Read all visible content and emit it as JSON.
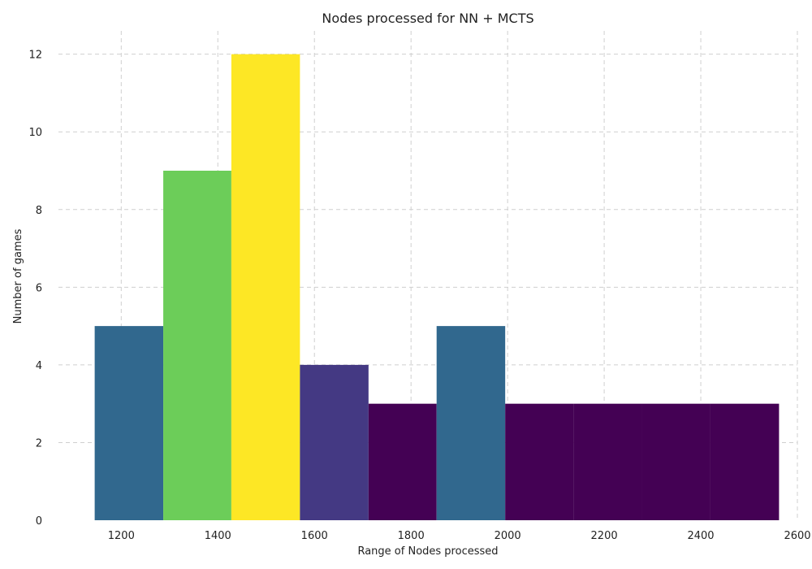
{
  "chart_data": {
    "type": "bar",
    "title": "Nodes processed for NN + MCTS",
    "xlabel": "Range of Nodes processed",
    "ylabel": "Number of games",
    "xlim": [
      1070,
      2600
    ],
    "ylim": [
      0,
      12.6
    ],
    "x_ticks": [
      1200,
      1400,
      1600,
      1800,
      2000,
      2200,
      2400,
      2600
    ],
    "y_ticks": [
      0,
      2,
      4,
      6,
      8,
      10,
      12
    ],
    "grid": true,
    "bins": [
      {
        "x0": 1145,
        "x1": 1287,
        "count": 5,
        "color": "#31688e"
      },
      {
        "x0": 1287,
        "x1": 1428,
        "count": 9,
        "color": "#6ccd59"
      },
      {
        "x0": 1428,
        "x1": 1570,
        "count": 12,
        "color": "#fde725"
      },
      {
        "x0": 1570,
        "x1": 1712,
        "count": 4,
        "color": "#443983"
      },
      {
        "x0": 1712,
        "x1": 1853,
        "count": 3,
        "color": "#440154"
      },
      {
        "x0": 1853,
        "x1": 1995,
        "count": 5,
        "color": "#31688e"
      },
      {
        "x0": 1995,
        "x1": 2137,
        "count": 3,
        "color": "#440154"
      },
      {
        "x0": 2137,
        "x1": 2278,
        "count": 3,
        "color": "#440154"
      },
      {
        "x0": 2278,
        "x1": 2420,
        "count": 3,
        "color": "#440154"
      },
      {
        "x0": 2420,
        "x1": 2562,
        "count": 3,
        "color": "#440154"
      }
    ]
  }
}
